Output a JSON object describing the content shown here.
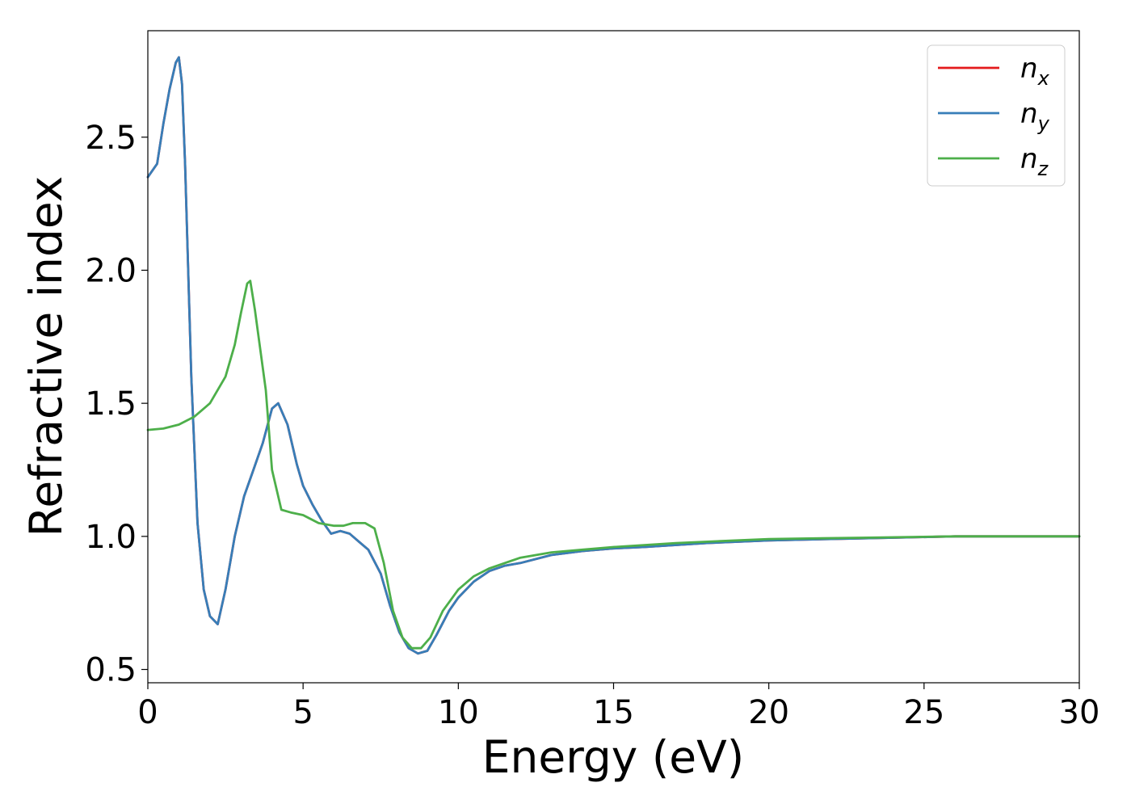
{
  "chart_data": {
    "type": "line",
    "xlabel": "Energy (eV)",
    "ylabel": "Refractive index",
    "xlim": [
      0,
      30
    ],
    "ylim": [
      0.45,
      2.9
    ],
    "x_ticks": [
      "0",
      "5",
      "10",
      "15",
      "20",
      "25",
      "30"
    ],
    "y_ticks": [
      "0.5",
      "1.0",
      "1.5",
      "2.0",
      "2.5"
    ],
    "grid": false,
    "legend_position": "top-right",
    "series": [
      {
        "name": "n_x",
        "legend_base": "n",
        "legend_sub": "x",
        "color": "#e41a1c",
        "x": [
          0,
          0.3,
          0.5,
          0.7,
          0.9,
          1.0,
          1.1,
          1.2,
          1.4,
          1.6,
          1.8,
          2.0,
          2.25,
          2.5,
          2.8,
          3.1,
          3.4,
          3.7,
          4.0,
          4.2,
          4.5,
          4.8,
          5.0,
          5.3,
          5.6,
          5.9,
          6.2,
          6.5,
          6.8,
          7.1,
          7.5,
          7.8,
          8.1,
          8.4,
          8.7,
          9.0,
          9.3,
          9.7,
          10.0,
          10.5,
          11.0,
          11.5,
          12.0,
          13.0,
          14.0,
          15.0,
          16.0,
          18.0,
          20.0,
          22.0,
          24.0,
          26.0,
          28.0,
          30.0
        ],
        "y": [
          2.35,
          2.4,
          2.55,
          2.68,
          2.78,
          2.8,
          2.7,
          2.4,
          1.6,
          1.05,
          0.8,
          0.7,
          0.67,
          0.8,
          1.0,
          1.15,
          1.25,
          1.35,
          1.48,
          1.5,
          1.42,
          1.27,
          1.19,
          1.12,
          1.06,
          1.01,
          1.02,
          1.01,
          0.98,
          0.95,
          0.86,
          0.74,
          0.64,
          0.58,
          0.56,
          0.57,
          0.63,
          0.72,
          0.77,
          0.83,
          0.87,
          0.89,
          0.9,
          0.93,
          0.945,
          0.955,
          0.96,
          0.975,
          0.985,
          0.99,
          0.995,
          1.0,
          1.0,
          1.0
        ]
      },
      {
        "name": "n_y",
        "legend_base": "n",
        "legend_sub": "y",
        "color": "#377eb8",
        "x": [
          0,
          0.3,
          0.5,
          0.7,
          0.9,
          1.0,
          1.1,
          1.2,
          1.4,
          1.6,
          1.8,
          2.0,
          2.25,
          2.5,
          2.8,
          3.1,
          3.4,
          3.7,
          4.0,
          4.2,
          4.5,
          4.8,
          5.0,
          5.3,
          5.6,
          5.9,
          6.2,
          6.5,
          6.8,
          7.1,
          7.5,
          7.8,
          8.1,
          8.4,
          8.7,
          9.0,
          9.3,
          9.7,
          10.0,
          10.5,
          11.0,
          11.5,
          12.0,
          13.0,
          14.0,
          15.0,
          16.0,
          18.0,
          20.0,
          22.0,
          24.0,
          26.0,
          28.0,
          30.0
        ],
        "y": [
          2.35,
          2.4,
          2.55,
          2.68,
          2.78,
          2.8,
          2.7,
          2.4,
          1.6,
          1.05,
          0.8,
          0.7,
          0.67,
          0.8,
          1.0,
          1.15,
          1.25,
          1.35,
          1.48,
          1.5,
          1.42,
          1.27,
          1.19,
          1.12,
          1.06,
          1.01,
          1.02,
          1.01,
          0.98,
          0.95,
          0.86,
          0.74,
          0.64,
          0.58,
          0.56,
          0.57,
          0.63,
          0.72,
          0.77,
          0.83,
          0.87,
          0.89,
          0.9,
          0.93,
          0.945,
          0.955,
          0.96,
          0.975,
          0.985,
          0.99,
          0.995,
          1.0,
          1.0,
          1.0
        ]
      },
      {
        "name": "n_z",
        "legend_base": "n",
        "legend_sub": "z",
        "color": "#4daf4a",
        "x": [
          0,
          0.5,
          1.0,
          1.5,
          2.0,
          2.5,
          2.8,
          3.0,
          3.2,
          3.3,
          3.45,
          3.6,
          3.8,
          4.0,
          4.3,
          4.6,
          5.0,
          5.5,
          6.0,
          6.3,
          6.6,
          7.0,
          7.3,
          7.6,
          7.9,
          8.2,
          8.5,
          8.8,
          9.1,
          9.5,
          10.0,
          10.5,
          11.0,
          12.0,
          13.0,
          14.0,
          15.0,
          17.0,
          20.0,
          23.0,
          26.0,
          28.0,
          30.0
        ],
        "y": [
          1.4,
          1.405,
          1.42,
          1.45,
          1.5,
          1.6,
          1.72,
          1.84,
          1.95,
          1.96,
          1.85,
          1.72,
          1.55,
          1.25,
          1.1,
          1.09,
          1.08,
          1.05,
          1.04,
          1.04,
          1.05,
          1.05,
          1.03,
          0.9,
          0.72,
          0.62,
          0.58,
          0.58,
          0.62,
          0.72,
          0.8,
          0.85,
          0.88,
          0.92,
          0.94,
          0.95,
          0.96,
          0.975,
          0.99,
          0.995,
          1.0,
          1.0,
          1.0
        ]
      }
    ]
  }
}
